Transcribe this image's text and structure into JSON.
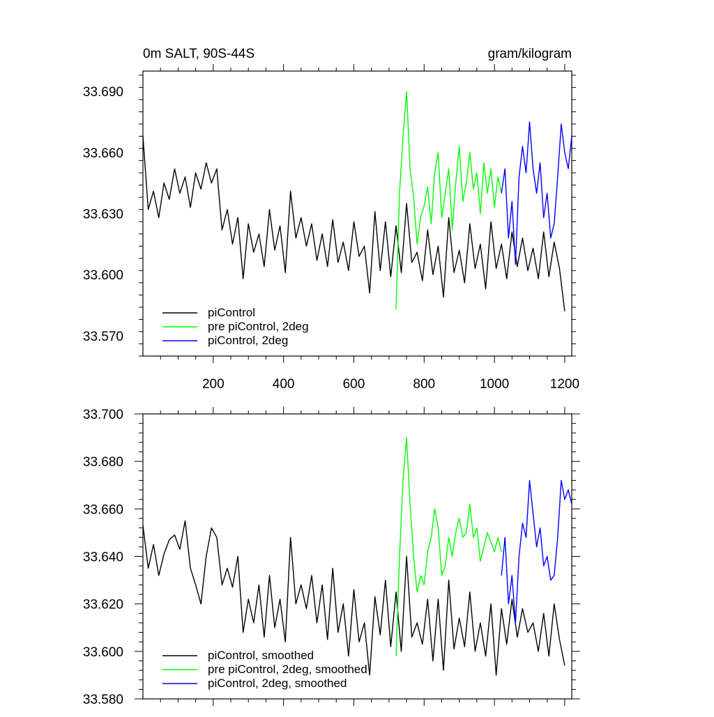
{
  "chart_data": [
    {
      "type": "line",
      "title": "0m SALT, 90S-44S",
      "units": "gram/kilogram",
      "xlabel": "",
      "ylabel": "",
      "xlim": [
        0,
        1220
      ],
      "ylim": [
        33.56,
        33.7
      ],
      "xticks": [
        200,
        400,
        600,
        800,
        1000,
        1200
      ],
      "xtick_labels": [
        "200",
        "400",
        "600",
        "800",
        "1000",
        "1200"
      ],
      "yticks": [
        33.57,
        33.6,
        33.63,
        33.66,
        33.69
      ],
      "ytick_labels": [
        "33.570",
        "33.600",
        "33.630",
        "33.660",
        "33.690"
      ],
      "legend_location": "bottom-left",
      "series": [
        {
          "name": "piControl",
          "color": "#000000",
          "x": [
            0,
            15,
            30,
            45,
            60,
            75,
            90,
            105,
            120,
            135,
            150,
            165,
            180,
            195,
            210,
            225,
            240,
            255,
            270,
            285,
            300,
            315,
            330,
            345,
            360,
            375,
            390,
            405,
            420,
            435,
            450,
            465,
            480,
            495,
            510,
            525,
            540,
            555,
            570,
            585,
            600,
            615,
            630,
            645,
            660,
            675,
            690,
            705,
            720,
            735,
            750,
            765,
            780,
            795,
            810,
            825,
            840,
            855,
            870,
            885,
            900,
            915,
            930,
            945,
            960,
            975,
            990,
            1005,
            1020,
            1035,
            1050,
            1065,
            1080,
            1095,
            1110,
            1125,
            1140,
            1155,
            1170,
            1185,
            1200
          ],
          "values": [
            33.668,
            33.632,
            33.641,
            33.628,
            33.645,
            33.637,
            33.652,
            33.64,
            33.648,
            33.633,
            33.65,
            33.642,
            33.655,
            33.645,
            33.652,
            33.622,
            33.632,
            33.615,
            33.628,
            33.598,
            33.625,
            33.611,
            33.62,
            33.604,
            33.632,
            33.612,
            33.624,
            33.601,
            33.641,
            33.618,
            33.628,
            33.614,
            33.625,
            33.607,
            33.62,
            33.604,
            33.627,
            33.606,
            33.616,
            33.602,
            33.626,
            33.609,
            33.614,
            33.591,
            33.631,
            33.602,
            33.626,
            33.599,
            33.624,
            33.601,
            33.635,
            33.606,
            33.611,
            33.597,
            33.622,
            33.6,
            33.614,
            33.589,
            33.628,
            33.601,
            33.612,
            33.596,
            33.625,
            33.603,
            33.615,
            33.593,
            33.626,
            33.603,
            33.615,
            33.598,
            33.621,
            33.604,
            33.618,
            33.602,
            33.613,
            33.598,
            33.621,
            33.599,
            33.616,
            33.603,
            33.582
          ]
        },
        {
          "name": "pre piControl, 2deg",
          "color": "#00ff00",
          "x": [
            720,
            730,
            740,
            750,
            760,
            770,
            780,
            790,
            800,
            810,
            820,
            830,
            840,
            850,
            860,
            870,
            880,
            890,
            900,
            910,
            920,
            930,
            940,
            950,
            960,
            970,
            980,
            990,
            1000,
            1010,
            1020
          ],
          "values": [
            33.583,
            33.64,
            33.668,
            33.69,
            33.652,
            33.638,
            33.615,
            33.628,
            33.634,
            33.643,
            33.625,
            33.65,
            33.66,
            33.628,
            33.64,
            33.652,
            33.622,
            33.645,
            33.663,
            33.636,
            33.645,
            33.66,
            33.642,
            33.65,
            33.63,
            33.655,
            33.64,
            33.652,
            33.633,
            33.648,
            33.64
          ]
        },
        {
          "name": "piControl, 2deg",
          "color": "#0000ff",
          "x": [
            1020,
            1030,
            1040,
            1050,
            1060,
            1070,
            1080,
            1090,
            1100,
            1110,
            1120,
            1130,
            1140,
            1150,
            1160,
            1170,
            1180,
            1190,
            1200,
            1210,
            1220
          ],
          "values": [
            33.64,
            33.652,
            33.618,
            33.636,
            33.605,
            33.648,
            33.663,
            33.65,
            33.675,
            33.652,
            33.64,
            33.655,
            33.628,
            33.64,
            33.618,
            33.625,
            33.648,
            33.674,
            33.66,
            33.652,
            33.668
          ]
        }
      ]
    },
    {
      "type": "line",
      "title": "",
      "xlabel": "",
      "ylabel": "",
      "xlim": [
        0,
        1220
      ],
      "ylim": [
        33.58,
        33.7
      ],
      "xticks": [
        200,
        400,
        600,
        800,
        1000,
        1200
      ],
      "yticks": [
        33.58,
        33.6,
        33.62,
        33.64,
        33.66,
        33.68,
        33.7
      ],
      "ytick_labels": [
        "33.580",
        "33.600",
        "33.620",
        "33.640",
        "33.660",
        "33.680",
        "33.700"
      ],
      "legend_location": "bottom-left",
      "series": [
        {
          "name": "piControl, smoothed",
          "color": "#000000",
          "x": [
            0,
            15,
            30,
            45,
            60,
            75,
            90,
            105,
            120,
            135,
            150,
            165,
            180,
            195,
            210,
            225,
            240,
            255,
            270,
            285,
            300,
            315,
            330,
            345,
            360,
            375,
            390,
            405,
            420,
            435,
            450,
            465,
            480,
            495,
            510,
            525,
            540,
            555,
            570,
            585,
            600,
            615,
            630,
            645,
            660,
            675,
            690,
            705,
            720,
            735,
            750,
            765,
            780,
            795,
            810,
            825,
            840,
            855,
            870,
            885,
            900,
            915,
            930,
            945,
            960,
            975,
            990,
            1005,
            1020,
            1035,
            1050,
            1065,
            1080,
            1095,
            1110,
            1125,
            1140,
            1155,
            1170,
            1185,
            1200
          ],
          "values": [
            33.653,
            33.635,
            33.645,
            33.632,
            33.641,
            33.647,
            33.649,
            33.643,
            33.655,
            33.635,
            33.628,
            33.62,
            33.64,
            33.652,
            33.648,
            33.628,
            33.635,
            33.627,
            33.64,
            33.608,
            33.622,
            33.612,
            33.628,
            33.606,
            33.632,
            33.61,
            33.622,
            33.604,
            33.648,
            33.62,
            33.628,
            33.618,
            33.632,
            33.612,
            33.628,
            33.605,
            33.635,
            33.608,
            33.62,
            33.598,
            33.626,
            33.604,
            33.612,
            33.59,
            33.623,
            33.607,
            33.63,
            33.602,
            33.625,
            33.6,
            33.64,
            33.606,
            33.612,
            33.603,
            33.622,
            33.596,
            33.622,
            33.592,
            33.63,
            33.601,
            33.614,
            33.602,
            33.625,
            33.6,
            33.612,
            33.598,
            33.62,
            33.59,
            33.618,
            33.603,
            33.622,
            33.606,
            33.618,
            33.608,
            33.612,
            33.6,
            33.616,
            33.598,
            33.62,
            33.605,
            33.594
          ]
        },
        {
          "name": "pre piControl, 2deg, smoothed",
          "color": "#00ff00",
          "x": [
            720,
            730,
            740,
            750,
            760,
            770,
            780,
            790,
            800,
            810,
            820,
            830,
            840,
            850,
            860,
            870,
            880,
            890,
            900,
            910,
            920,
            930,
            940,
            950,
            960,
            970,
            980,
            990,
            1000,
            1010,
            1020
          ],
          "values": [
            33.598,
            33.64,
            33.672,
            33.69,
            33.662,
            33.64,
            33.625,
            33.632,
            33.628,
            33.642,
            33.648,
            33.66,
            33.652,
            33.632,
            33.636,
            33.648,
            33.64,
            33.65,
            33.656,
            33.648,
            33.65,
            33.662,
            33.648,
            33.652,
            33.638,
            33.644,
            33.65,
            33.646,
            33.642,
            33.648,
            33.642
          ]
        },
        {
          "name": "piControl, 2deg, smoothed",
          "color": "#0000ff",
          "x": [
            1020,
            1030,
            1040,
            1050,
            1060,
            1070,
            1080,
            1090,
            1100,
            1110,
            1120,
            1130,
            1140,
            1150,
            1160,
            1170,
            1180,
            1190,
            1200,
            1210,
            1220
          ],
          "values": [
            33.632,
            33.648,
            33.62,
            33.632,
            33.612,
            33.64,
            33.654,
            33.648,
            33.672,
            33.658,
            33.644,
            33.652,
            33.636,
            33.64,
            33.63,
            33.632,
            33.648,
            33.672,
            33.664,
            33.668,
            33.662
          ]
        }
      ]
    }
  ]
}
